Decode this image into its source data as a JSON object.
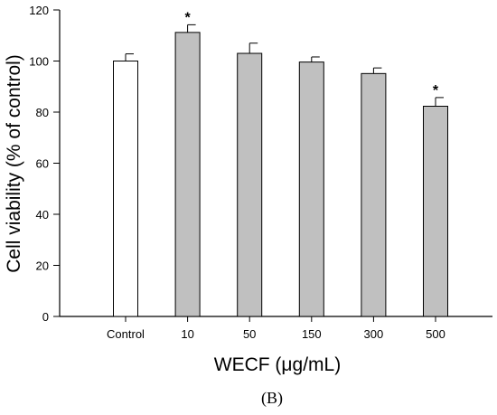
{
  "chart_data": {
    "type": "bar",
    "categories": [
      "Control",
      "10",
      "50",
      "150",
      "300",
      "500"
    ],
    "values": [
      100,
      111.2,
      103.0,
      99.6,
      95.1,
      82.3
    ],
    "errors": [
      2.8,
      3.0,
      4.0,
      2.0,
      2.2,
      3.4
    ],
    "significance": [
      "",
      "*",
      "",
      "",
      "",
      "*"
    ],
    "bar_colors": [
      "#ffffff",
      "#c0c0c0",
      "#c0c0c0",
      "#c0c0c0",
      "#c0c0c0",
      "#c0c0c0"
    ],
    "ylabel": "Cell viability (% of control)",
    "xlabel": "WECF (μg/mL)",
    "ylim": [
      0,
      120
    ],
    "yticks": [
      0,
      20,
      40,
      60,
      80,
      100,
      120
    ],
    "grid": false
  },
  "panel_label": "(B)"
}
